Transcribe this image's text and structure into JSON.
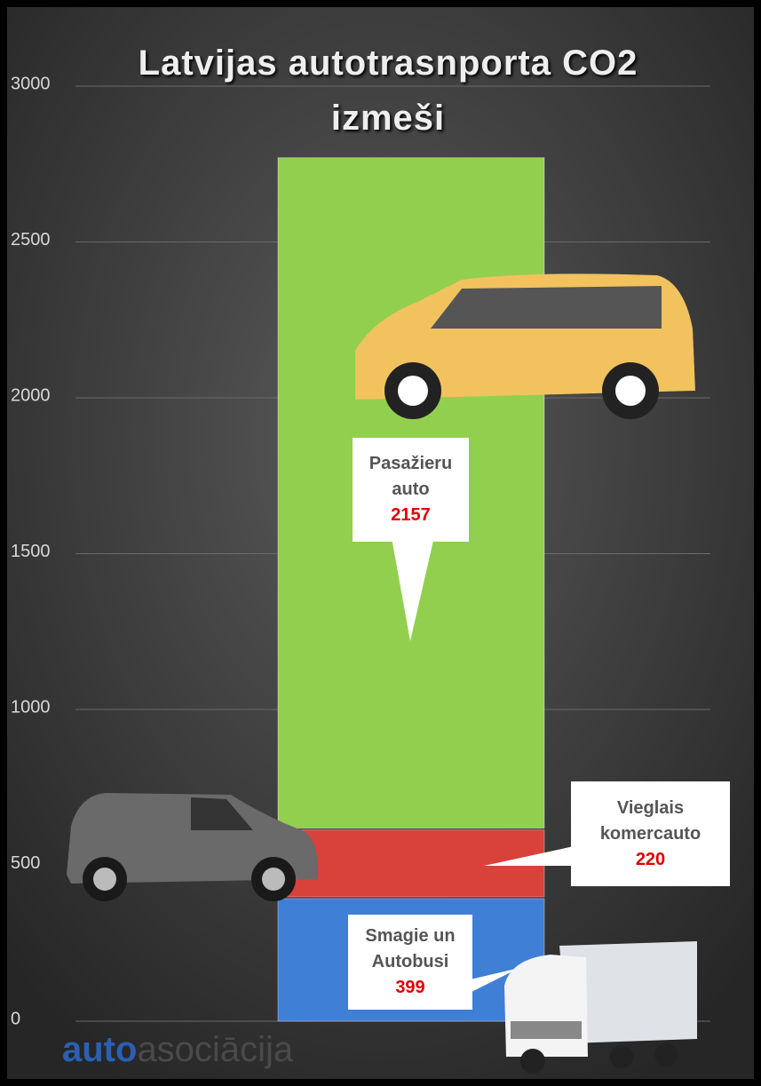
{
  "chart_data": {
    "type": "stacked_bar",
    "title": "Latvijas autotrasnporta CO2 izmeši",
    "categories": [
      null
    ],
    "series": [
      {
        "name": "Smagie un Autobusi",
        "color": "#3f7fd6",
        "values": [
          399
        ]
      },
      {
        "name": "Vieglais komercauto",
        "color": "#d9413b",
        "values": [
          220
        ]
      },
      {
        "name": "Pasažieru auto",
        "color": "#92cf4f",
        "values": [
          2157
        ]
      }
    ],
    "ylim": [
      0,
      3000
    ],
    "yticks": [
      0,
      500,
      1000,
      1500,
      2000,
      2500,
      3000
    ],
    "grid": true
  },
  "logo": [
    "auto",
    "asociācija"
  ]
}
